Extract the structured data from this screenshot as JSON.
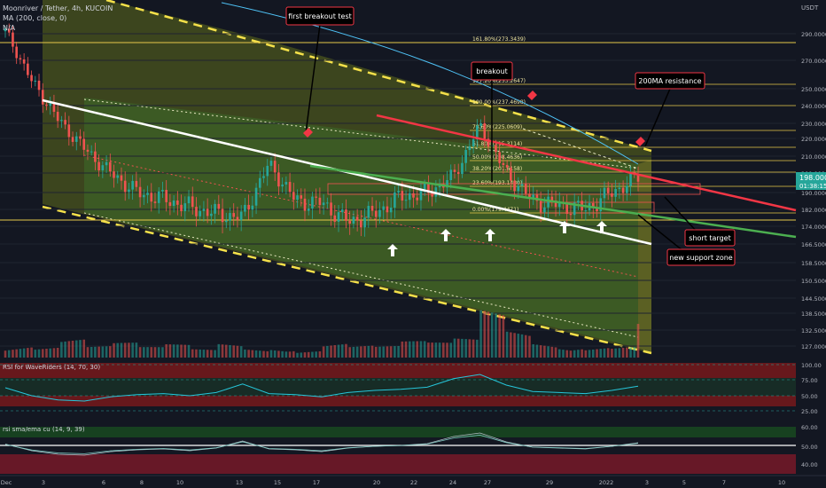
{
  "header": {
    "symbol_line": "Moonriver / Tether, 4h, KUCOIN",
    "ma_line": "MA (200, close, 0)",
    "ma_value": "N/A"
  },
  "price_axis": {
    "unit": "USDT",
    "ticks": [
      "290.0000",
      "270.0000",
      "250.0000",
      "240.0000",
      "230.0000",
      "220.0000",
      "210.0000",
      "200.0000",
      "190.0000",
      "182.0000",
      "174.0000",
      "166.5000",
      "158.5000",
      "150.5000",
      "144.5000",
      "138.5000",
      "132.5000",
      "127.0000"
    ],
    "last_price": "198.0000",
    "countdown": "01:38:15",
    "last_price_color": "#26a69a"
  },
  "time_axis": {
    "labels": [
      "Dec",
      "3",
      "6",
      "8",
      "10",
      "13",
      "15",
      "17",
      "20",
      "22",
      "24",
      "27",
      "29",
      "2022",
      "3",
      "5",
      "7",
      "10"
    ]
  },
  "fib_levels": [
    {
      "label": "161.80%(273.3439)"
    },
    {
      "label": "127.20%(253.2647)"
    },
    {
      "label": "100.00%(237.4698)"
    },
    {
      "label": "78.60%(225.0609)"
    },
    {
      "label": "61.80%(215.3114)"
    },
    {
      "label": "50.00%(208.4636)"
    },
    {
      "label": "38.20%(201.6158)"
    },
    {
      "label": "23.60%(193.1430)"
    },
    {
      "label": "0.00%(179.4471)"
    }
  ],
  "annotations": {
    "first_breakout": "first breakout test",
    "breakout": "breakout",
    "ma_resistance": "200MA resistance",
    "short_target": "short target",
    "support_zone": "new support zone"
  },
  "rsi_panel": {
    "title": "RSI for WaveRiders (14, 70, 30)",
    "ticks": [
      "100.00",
      "75.00",
      "50.00",
      "25.00"
    ]
  },
  "rsi_ema_panel": {
    "title": "rsi sma/ema cu (14, 9, 39)",
    "ticks": [
      "60.00",
      "50.00",
      "40.00"
    ]
  },
  "colors": {
    "background": "#131722",
    "candle_up": "#26a69a",
    "candle_down": "#ef5350",
    "ma200": "#4fc3f7",
    "channel_fill": "#6b7a1e",
    "trend_white": "#ffffff",
    "trend_red": "#f23645",
    "trend_green": "#4caf50",
    "fib_line": "#e6c84a"
  },
  "chart_data": {
    "type": "candlestick",
    "symbol": "MOVR/USDT",
    "exchange": "KUCOIN",
    "timeframe": "4h",
    "ylim": [
      124,
      300
    ],
    "y_scale": "log",
    "close_series_sampled": [
      {
        "x": "Dec 1",
        "y": 292
      },
      {
        "x": "Dec 2",
        "y": 255
      },
      {
        "x": "Dec 3",
        "y": 232
      },
      {
        "x": "Dec 4",
        "y": 214
      },
      {
        "x": "Dec 6",
        "y": 200
      },
      {
        "x": "Dec 8",
        "y": 190
      },
      {
        "x": "Dec 10",
        "y": 187
      },
      {
        "x": "Dec 12",
        "y": 183
      },
      {
        "x": "Dec 13",
        "y": 180
      },
      {
        "x": "Dec 15",
        "y": 178
      },
      {
        "x": "Dec 16",
        "y": 205
      },
      {
        "x": "Dec 17",
        "y": 186
      },
      {
        "x": "Dec 19",
        "y": 185
      },
      {
        "x": "Dec 20",
        "y": 176
      },
      {
        "x": "Dec 22",
        "y": 180
      },
      {
        "x": "Dec 24",
        "y": 188
      },
      {
        "x": "Dec 26",
        "y": 190
      },
      {
        "x": "Dec 27",
        "y": 198
      },
      {
        "x": "Dec 28",
        "y": 228
      },
      {
        "x": "Dec 29",
        "y": 200
      },
      {
        "x": "Dec 30",
        "y": 186
      },
      {
        "x": "Dec 31",
        "y": 184
      },
      {
        "x": "Jan 1",
        "y": 182
      },
      {
        "x": "Jan 2",
        "y": 190
      },
      {
        "x": "Jan 3",
        "y": 198
      }
    ],
    "volume_sampled": [
      12,
      9,
      14,
      8,
      10,
      7,
      9,
      6,
      11,
      8,
      10,
      7,
      12,
      9,
      8,
      11,
      10,
      13,
      35,
      22,
      14,
      12,
      10,
      9,
      28
    ],
    "rsi_sampled": [
      55,
      40,
      32,
      30,
      38,
      42,
      44,
      40,
      46,
      62,
      44,
      42,
      38,
      46,
      50,
      52,
      56,
      72,
      80,
      60,
      48,
      46,
      44,
      50,
      58
    ],
    "fib_swing": {
      "high": 237.4698,
      "low": 179.4471
    }
  }
}
